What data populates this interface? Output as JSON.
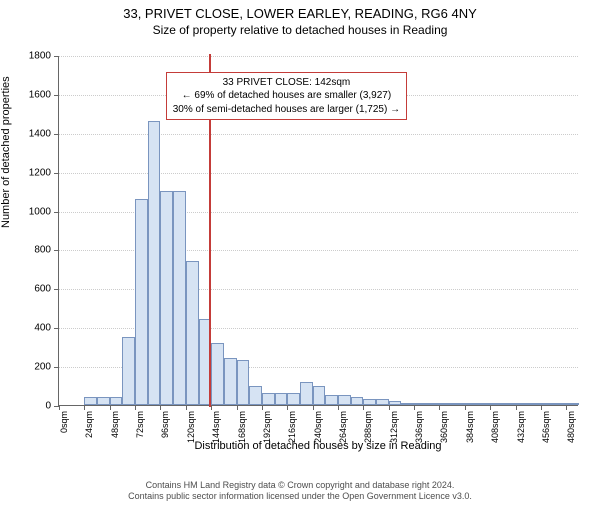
{
  "title_line1": "33, PRIVET CLOSE, LOWER EARLEY, READING, RG6 4NY",
  "title_line2": "Size of property relative to detached houses in Reading",
  "chart": {
    "type": "histogram",
    "ylabel": "Number of detached properties",
    "xlabel": "Distribution of detached houses by size in Reading",
    "ylim": [
      0,
      1800
    ],
    "ytick_step": 200,
    "xlim": [
      0,
      492
    ],
    "xtick_step": 24,
    "xtick_unit": "sqm",
    "bar_fill": "#d6e3f3",
    "bar_stroke": "#7a95bf",
    "grid_color": "#cccccc",
    "background_color": "#ffffff",
    "axis_color": "#666666",
    "bin_edges": [
      0,
      12,
      24,
      36,
      48,
      60,
      72,
      84,
      96,
      108,
      120,
      132,
      144,
      156,
      168,
      180,
      192,
      204,
      216,
      228,
      240,
      252,
      264,
      276,
      288,
      300,
      312,
      324,
      336,
      348,
      360,
      372,
      384,
      396,
      408,
      420,
      432,
      444,
      456,
      468,
      480,
      492
    ],
    "counts": [
      0,
      0,
      40,
      40,
      40,
      350,
      1060,
      1460,
      1100,
      1100,
      740,
      440,
      320,
      240,
      230,
      100,
      60,
      60,
      60,
      120,
      100,
      50,
      50,
      40,
      30,
      30,
      20,
      10,
      10,
      10,
      10,
      10,
      10,
      5,
      5,
      5,
      5,
      5,
      5,
      5,
      5
    ],
    "reference_line": {
      "x": 142,
      "color": "#c43c39",
      "width": 2
    },
    "annotation": {
      "lines": [
        "33 PRIVET CLOSE: 142sqm",
        "← 69% of detached houses are smaller (3,927)",
        "30% of semi-detached houses are larger (1,725) →"
      ],
      "border_color": "#c43c39",
      "x_center": 215,
      "y_top": 1720
    }
  },
  "footer": {
    "line1": "Contains HM Land Registry data © Crown copyright and database right 2024.",
    "line2": "Contains public sector information licensed under the Open Government Licence v3.0."
  }
}
